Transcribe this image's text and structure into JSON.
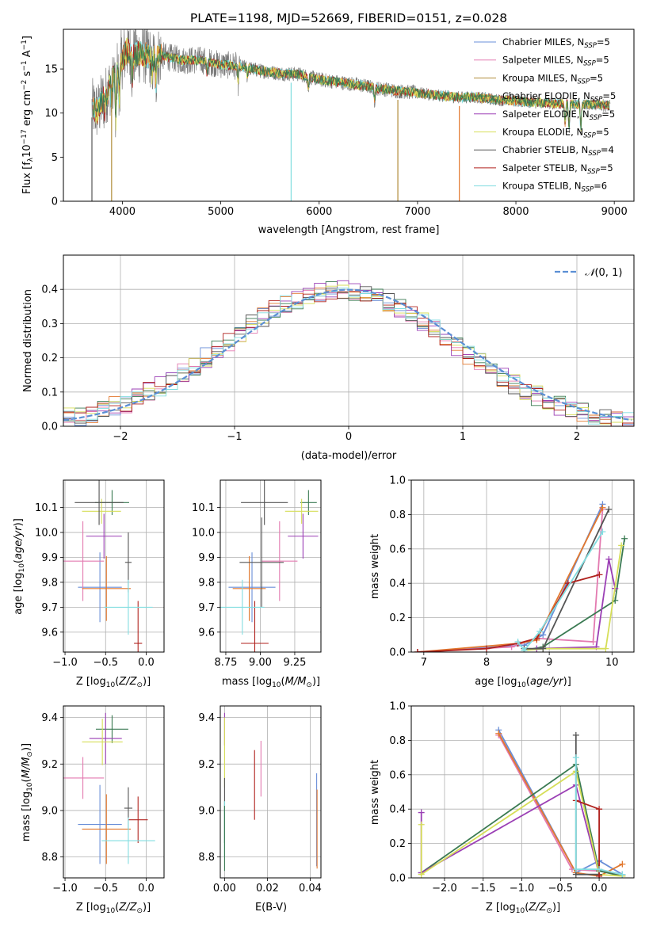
{
  "figure_title": "PLATE=1198, MJD=52669, FIBERID=0151, z=0.028",
  "colors": {
    "Chabrier MILES": "#6a8fd8",
    "Salpeter MILES": "#e37ab0",
    "Kroupa MILES": "#b08d3a",
    "Chabrier ELODIE": "#3a7a52",
    "Salpeter ELODIE": "#9b3fb5",
    "Kroupa ELODIE": "#d6de58",
    "Chabrier STELIB": "#555555",
    "Salpeter STELIB": "#b0221e",
    "Kroupa STELIB": "#82dde0",
    "orange": "#e2782e",
    "gauss": "#5b8fd4",
    "grid": "#b0b0b0"
  },
  "chart_data": [
    {
      "id": "spectrum",
      "type": "line",
      "title": "PLATE=1198, MJD=52669, FIBERID=0151, z=0.028",
      "xlabel": "wavelength [Angstrom, rest frame]",
      "ylabel": "Flux [f_λ10^-17 erg cm^-2 s^-1 A^-1]",
      "xlim": [
        3400,
        9200
      ],
      "ylim": [
        0,
        19.5
      ],
      "xticks": [
        4000,
        5000,
        6000,
        7000,
        8000,
        9000
      ],
      "yticks": [
        0,
        5,
        10,
        15
      ],
      "grid": false,
      "legend_position": "top-right",
      "legend": [
        {
          "label": "Chabrier MILES, N",
          "sub": "SSP",
          "suffix": "=5",
          "color": "Chabrier MILES"
        },
        {
          "label": "Salpeter MILES, N",
          "sub": "SSP",
          "suffix": "=5",
          "color": "Salpeter MILES"
        },
        {
          "label": "Kroupa MILES, N",
          "sub": "SSP",
          "suffix": "=5",
          "color": "Kroupa MILES"
        },
        {
          "label": "Chabrier ELODIE, N",
          "sub": "SSP",
          "suffix": "=5",
          "color": "Chabrier ELODIE"
        },
        {
          "label": "Salpeter ELODIE, N",
          "sub": "SSP",
          "suffix": "=5",
          "color": "Salpeter ELODIE"
        },
        {
          "label": "Kroupa ELODIE, N",
          "sub": "SSP",
          "suffix": "=5",
          "color": "Kroupa ELODIE"
        },
        {
          "label": "Chabrier STELIB, N",
          "sub": "SSP",
          "suffix": "=4",
          "color": "Chabrier STELIB"
        },
        {
          "label": "Salpeter STELIB, N",
          "sub": "SSP",
          "suffix": "=5",
          "color": "Salpeter STELIB"
        },
        {
          "label": "Kroupa STELIB, N",
          "sub": "SSP",
          "suffix": "=6",
          "color": "Kroupa STELIB"
        }
      ],
      "continuum": {
        "x": [
          3700,
          3750,
          3800,
          3850,
          3900,
          3950,
          4000,
          4050,
          4100,
          4200,
          4300,
          4400,
          4600,
          4800,
          5000,
          5200,
          5400,
          5600,
          5800,
          6000,
          6200,
          6400,
          6600,
          6800,
          7000,
          7200,
          7400,
          7600,
          7800,
          8000,
          8200,
          8400,
          8600,
          8800,
          8950
        ],
        "y": [
          10.5,
          10.2,
          11.5,
          12.5,
          13.8,
          15.2,
          16.2,
          17.2,
          16.5,
          16.8,
          16.2,
          16.5,
          16.0,
          16.0,
          15.5,
          15.3,
          14.8,
          14.5,
          14.4,
          13.8,
          13.5,
          13.2,
          12.8,
          12.5,
          12.3,
          12.0,
          11.8,
          11.8,
          11.5,
          11.4,
          11.2,
          11.1,
          11.0,
          11.0,
          10.8
        ]
      },
      "absorption_features": [
        {
          "x": 3820,
          "depth": 1.5
        },
        {
          "x": 3889,
          "depth": 2.0
        },
        {
          "x": 3933,
          "depth": 6.0
        },
        {
          "x": 3968,
          "depth": 4.5
        },
        {
          "x": 4101,
          "depth": 2.5
        },
        {
          "x": 4300,
          "depth": 2.0
        },
        {
          "x": 4340,
          "depth": 3.5
        },
        {
          "x": 4861,
          "depth": 1.5
        },
        {
          "x": 5175,
          "depth": 2.0
        },
        {
          "x": 5270,
          "depth": 1.0
        },
        {
          "x": 5890,
          "depth": 1.5
        },
        {
          "x": 6563,
          "depth": 1.5
        },
        {
          "x": 8500,
          "depth": 2.5
        },
        {
          "x": 8540,
          "depth": 3.0
        },
        {
          "x": 8660,
          "depth": 3.0
        }
      ],
      "drops": [
        {
          "x": 3690,
          "color": "Chabrier STELIB"
        },
        {
          "x": 3890,
          "color": "Kroupa MILES"
        },
        {
          "x": 5715,
          "color": "Kroupa STELIB"
        },
        {
          "x": 6800,
          "color": "Kroupa MILES"
        },
        {
          "x": 7425,
          "color": "orange"
        }
      ]
    },
    {
      "id": "residual_histogram",
      "type": "histogram",
      "xlabel": "(data-model)/error",
      "ylabel": "Normed distribution",
      "xlim": [
        -2.5,
        2.5
      ],
      "ylim": [
        0,
        0.5
      ],
      "xticks": [
        -2,
        -1,
        0,
        1,
        2
      ],
      "xtick_labels": [
        "−2",
        "−1",
        "0",
        "1",
        "2"
      ],
      "yticks": [
        0.0,
        0.1,
        0.2,
        0.3,
        0.4
      ],
      "grid": true,
      "legend_position": "top-right",
      "legend_label": "N(0,1)",
      "bin_width": 0.1,
      "bin_start": -2.5
    },
    {
      "id": "age_vs_Z",
      "type": "errorbar",
      "xlabel": "Z [log10(Z/Z⊙)]",
      "ylabel": "age [log10(age/yr)]",
      "xlim": [
        -1.02,
        0.22
      ],
      "ylim": [
        9.52,
        10.21
      ],
      "xticks": [
        -1.0,
        -0.5,
        0.0
      ],
      "xtick_labels": [
        "−1.0",
        "−0.5",
        "0.0"
      ],
      "yticks": [
        9.6,
        9.7,
        9.8,
        9.9,
        10.0,
        10.1
      ],
      "grid": true,
      "points": [
        {
          "x": -0.57,
          "xerr": 0.27,
          "y": 9.78,
          "yerr": 0.14,
          "color": "Chabrier MILES"
        },
        {
          "x": -0.78,
          "xerr": 0.26,
          "y": 9.885,
          "yerr": 0.16,
          "color": "Salpeter MILES"
        },
        {
          "x": -0.49,
          "xerr": 0.3,
          "y": 9.775,
          "yerr": 0.13,
          "color": "orange"
        },
        {
          "x": -0.42,
          "xerr": 0.21,
          "y": 10.12,
          "yerr": 0.05,
          "color": "Chabrier ELODIE"
        },
        {
          "x": -0.52,
          "xerr": 0.22,
          "y": 9.985,
          "yerr": 0.09,
          "color": "Salpeter ELODIE"
        },
        {
          "x": -0.55,
          "xerr": 0.24,
          "y": 10.085,
          "yerr": 0.05,
          "color": "Kroupa ELODIE"
        },
        {
          "x": -0.58,
          "xerr": 0.3,
          "y": 10.12,
          "yerr": 0.09,
          "color": "Chabrier STELIB"
        },
        {
          "x": -0.22,
          "xerr": 0.04,
          "y": 9.88,
          "yerr": 0.12,
          "color": "Chabrier STELIB"
        },
        {
          "x": -0.1,
          "xerr": 0.05,
          "y": 9.555,
          "yerr": 0.17,
          "color": "Salpeter STELIB"
        },
        {
          "x": -0.22,
          "xerr": 0.3,
          "y": 9.7,
          "yerr": 0.11,
          "color": "Kroupa STELIB"
        }
      ]
    },
    {
      "id": "age_vs_mass",
      "type": "errorbar",
      "xlabel": "mass [log10(M/M⊙)]",
      "ylabel": "",
      "xlim": [
        8.71,
        9.44
      ],
      "ylim": [
        9.52,
        10.21
      ],
      "xticks": [
        8.75,
        9.0,
        9.25
      ],
      "xtick_labels": [
        "8.75",
        "9.00",
        "9.25"
      ],
      "yticks": [
        9.6,
        9.7,
        9.8,
        9.9,
        10.0,
        10.1
      ],
      "grid": true,
      "points": [
        {
          "x": 8.94,
          "xerr": 0.17,
          "y": 9.78,
          "yerr": 0.14,
          "color": "Chabrier MILES"
        },
        {
          "x": 9.14,
          "xerr": 0.13,
          "y": 9.885,
          "yerr": 0.16,
          "color": "Salpeter MILES"
        },
        {
          "x": 8.92,
          "xerr": 0.12,
          "y": 9.775,
          "yerr": 0.13,
          "color": "orange"
        },
        {
          "x": 9.35,
          "xerr": 0.06,
          "y": 10.12,
          "yerr": 0.05,
          "color": "Chabrier ELODIE"
        },
        {
          "x": 9.31,
          "xerr": 0.11,
          "y": 9.985,
          "yerr": 0.09,
          "color": "Salpeter ELODIE"
        },
        {
          "x": 9.3,
          "xerr": 0.12,
          "y": 10.085,
          "yerr": 0.05,
          "color": "Kroupa ELODIE"
        },
        {
          "x": 9.01,
          "xerr": 0.16,
          "y": 9.88,
          "yerr": 0.18,
          "color": "Chabrier STELIB"
        },
        {
          "x": 8.96,
          "xerr": 0.1,
          "y": 9.555,
          "yerr": 0.17,
          "color": "Salpeter STELIB"
        },
        {
          "x": 8.87,
          "xerr": 0.16,
          "y": 9.7,
          "yerr": 0.11,
          "color": "Kroupa STELIB"
        },
        {
          "x": 9.03,
          "xerr": 0.17,
          "y": 10.12,
          "yerr": 0.09,
          "color": "Chabrier STELIB"
        }
      ]
    },
    {
      "id": "weight_vs_age",
      "type": "line",
      "xlabel": "age [log10(age/yr)]",
      "ylabel": "mass weight",
      "xlim": [
        6.8,
        10.35
      ],
      "ylim": [
        0,
        1.0
      ],
      "xticks": [
        7,
        8,
        9,
        10
      ],
      "yticks": [
        0.0,
        0.2,
        0.4,
        0.6,
        0.8,
        1.0
      ],
      "grid": true,
      "series": [
        {
          "color": "Chabrier MILES",
          "x": [
            6.9,
            8.6,
            8.9,
            9.85
          ],
          "y": [
            0.0,
            0.04,
            0.1,
            0.86
          ]
        },
        {
          "color": "Salpeter MILES",
          "x": [
            6.9,
            8.4,
            8.8,
            9.7,
            9.85
          ],
          "y": [
            0.0,
            0.03,
            0.08,
            0.06,
            0.83
          ]
        },
        {
          "color": "orange",
          "x": [
            6.9,
            8.5,
            8.8,
            9.85
          ],
          "y": [
            0.0,
            0.05,
            0.07,
            0.84
          ]
        },
        {
          "color": "Chabrier ELODIE",
          "x": [
            8.6,
            8.9,
            10.05,
            10.2
          ],
          "y": [
            0.01,
            0.03,
            0.3,
            0.66
          ]
        },
        {
          "color": "Salpeter ELODIE",
          "x": [
            8.6,
            8.8,
            9.75,
            9.95,
            10.05
          ],
          "y": [
            0.01,
            0.02,
            0.03,
            0.54,
            0.37
          ]
        },
        {
          "color": "Kroupa ELODIE",
          "x": [
            8.6,
            8.9,
            9.9,
            10.15
          ],
          "y": [
            0.01,
            0.02,
            0.02,
            0.62
          ]
        },
        {
          "color": "Chabrier STELIB",
          "x": [
            8.6,
            8.9,
            9.95
          ],
          "y": [
            0.02,
            0.02,
            0.83
          ]
        },
        {
          "color": "Salpeter STELIB",
          "x": [
            6.9,
            8.0,
            8.5,
            8.8,
            9.3,
            9.8
          ],
          "y": [
            0.0,
            0.02,
            0.05,
            0.08,
            0.4,
            0.45
          ]
        },
        {
          "color": "Kroupa STELIB",
          "x": [
            8.5,
            8.6,
            8.85,
            9.85
          ],
          "y": [
            0.06,
            0.01,
            0.12,
            0.7
          ]
        }
      ]
    },
    {
      "id": "mass_vs_Z",
      "type": "errorbar",
      "xlabel": "Z [log10(Z/Z⊙)]",
      "ylabel": "mass [log10(M/M⊙)]",
      "xlim": [
        -1.02,
        0.22
      ],
      "ylim": [
        8.71,
        9.45
      ],
      "xticks": [
        -1.0,
        -0.5,
        0.0
      ],
      "xtick_labels": [
        "−1.0",
        "−0.5",
        "0.0"
      ],
      "yticks": [
        8.8,
        9.0,
        9.2,
        9.4
      ],
      "grid": true,
      "points": [
        {
          "x": -0.57,
          "xerr": 0.27,
          "y": 8.94,
          "yerr": 0.17,
          "color": "Chabrier MILES"
        },
        {
          "x": -0.78,
          "xerr": 0.26,
          "y": 9.14,
          "yerr": 0.09,
          "color": "Salpeter MILES"
        },
        {
          "x": -0.49,
          "xerr": 0.3,
          "y": 8.92,
          "yerr": 0.15,
          "color": "orange"
        },
        {
          "x": -0.42,
          "xerr": 0.2,
          "y": 9.35,
          "yerr": 0.06,
          "color": "Chabrier ELODIE"
        },
        {
          "x": -0.5,
          "xerr": 0.2,
          "y": 9.31,
          "yerr": 0.11,
          "color": "Salpeter ELODIE"
        },
        {
          "x": -0.54,
          "xerr": 0.25,
          "y": 9.295,
          "yerr": 0.1,
          "color": "Kroupa ELODIE"
        },
        {
          "x": -0.22,
          "xerr": 0.05,
          "y": 9.01,
          "yerr": 0.09,
          "color": "Chabrier STELIB"
        },
        {
          "x": -0.1,
          "xerr": 0.12,
          "y": 8.96,
          "yerr": 0.1,
          "color": "Salpeter STELIB"
        },
        {
          "x": -0.22,
          "xerr": 0.33,
          "y": 8.87,
          "yerr": 0.1,
          "color": "Kroupa STELIB"
        }
      ]
    },
    {
      "id": "mass_vs_ebv",
      "type": "errorbar",
      "xlabel": "E(B-V)",
      "ylabel": "",
      "xlim": [
        -0.002,
        0.045
      ],
      "ylim": [
        8.71,
        9.45
      ],
      "xticks": [
        0.0,
        0.02,
        0.04
      ],
      "xtick_labels": [
        "0.00",
        "0.02",
        "0.04"
      ],
      "yticks": [
        8.8,
        9.0,
        9.2,
        9.4
      ],
      "grid": true,
      "points": [
        {
          "x": 0.0,
          "xerr": 0,
          "y": 9.35,
          "yerr": 0.07,
          "color": "Salpeter ELODIE"
        },
        {
          "x": 0.0,
          "xerr": 0,
          "y": 9.25,
          "yerr": 0.15,
          "color": "Kroupa ELODIE"
        },
        {
          "x": 0.0,
          "xerr": 0,
          "y": 9.0,
          "yerr": 0.14,
          "color": "Chabrier STELIB"
        },
        {
          "x": 0.0,
          "xerr": 0,
          "y": 8.92,
          "yerr": 0.12,
          "color": "Kroupa STELIB"
        },
        {
          "x": 0.0,
          "xerr": 0,
          "y": 8.88,
          "yerr": 0.14,
          "color": "Chabrier ELODIE"
        },
        {
          "x": 0.014,
          "xerr": 0,
          "y": 9.11,
          "yerr": 0.15,
          "color": "Salpeter STELIB"
        },
        {
          "x": 0.017,
          "xerr": 0,
          "y": 9.18,
          "yerr": 0.12,
          "color": "Salpeter MILES"
        },
        {
          "x": 0.043,
          "xerr": 0,
          "y": 8.96,
          "yerr": 0.2,
          "color": "Chabrier MILES"
        },
        {
          "x": 0.0432,
          "xerr": 0,
          "y": 8.92,
          "yerr": 0.17,
          "color": "orange"
        }
      ]
    },
    {
      "id": "weight_vs_Z",
      "type": "line",
      "xlabel": "Z [log10(Z/Z⊙)]",
      "ylabel": "mass weight",
      "xlim": [
        -2.43,
        0.45
      ],
      "ylim": [
        0,
        1.0
      ],
      "xticks": [
        -2.0,
        -1.5,
        -1.0,
        -0.5,
        0.0
      ],
      "xtick_labels": [
        "−2.0",
        "−1.5",
        "−1.0",
        "−0.5",
        "0.0"
      ],
      "yticks": [
        0.0,
        0.2,
        0.4,
        0.6,
        0.8,
        1.0
      ],
      "grid": true,
      "series": [
        {
          "color": "Chabrier MILES",
          "x": [
            -1.3,
            -0.3,
            0.0,
            0.3
          ],
          "y": [
            0.86,
            0.03,
            0.1,
            0.02
          ]
        },
        {
          "color": "Salpeter MILES",
          "x": [
            -1.3,
            -0.35,
            0.0,
            0.3
          ],
          "y": [
            0.83,
            0.05,
            0.04,
            0.02
          ]
        },
        {
          "color": "orange",
          "x": [
            -1.3,
            -0.3,
            0.0,
            0.3
          ],
          "y": [
            0.84,
            0.03,
            0.01,
            0.08
          ]
        },
        {
          "color": "Chabrier ELODIE",
          "x": [
            -2.3,
            -0.3,
            0.0,
            0.3
          ],
          "y": [
            0.03,
            0.66,
            0.04,
            0.01
          ]
        },
        {
          "color": "Salpeter ELODIE",
          "x": [
            -2.3,
            -2.3,
            -0.3,
            0.0
          ],
          "y": [
            0.38,
            0.03,
            0.54,
            0.02
          ]
        },
        {
          "color": "Kroupa ELODIE",
          "x": [
            -2.3,
            -2.3,
            -0.3,
            0.0,
            0.3
          ],
          "y": [
            0.31,
            0.02,
            0.62,
            0.02,
            0.01
          ]
        },
        {
          "color": "Chabrier STELIB",
          "x": [
            -0.3,
            -0.3,
            0.0,
            0.0
          ],
          "y": [
            0.83,
            0.02,
            0.02,
            0.05
          ]
        },
        {
          "color": "Salpeter STELIB",
          "x": [
            -0.3,
            0.0,
            0.0
          ],
          "y": [
            0.45,
            0.4,
            0.01
          ]
        },
        {
          "color": "Kroupa STELIB",
          "x": [
            -0.3,
            -0.3,
            0.0,
            0.3
          ],
          "y": [
            0.7,
            0.05,
            0.05,
            0.02
          ]
        }
      ]
    }
  ]
}
